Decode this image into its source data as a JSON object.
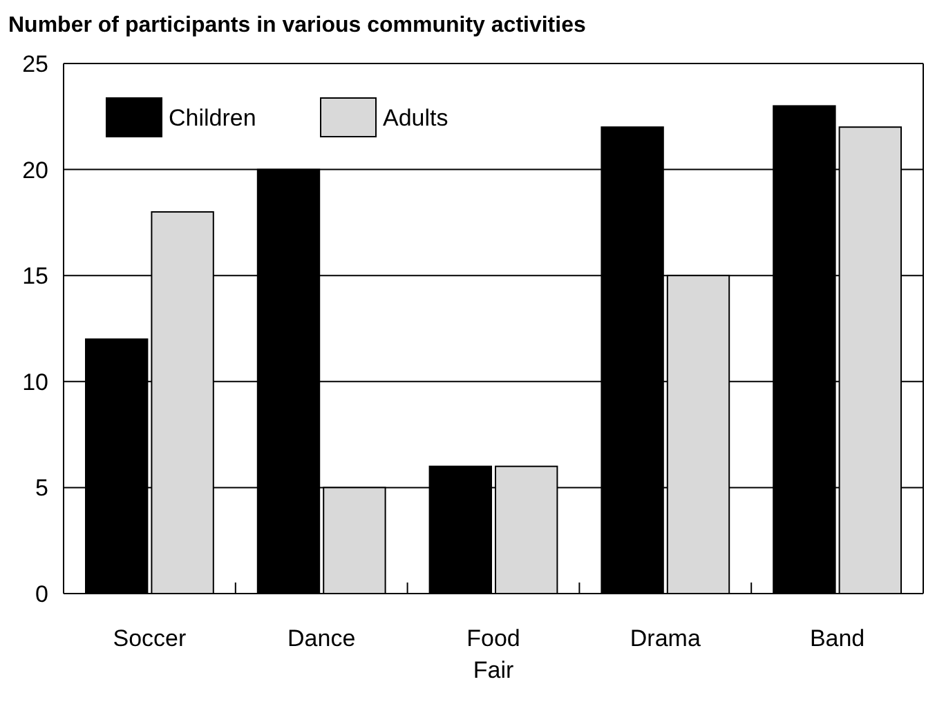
{
  "chart_data": {
    "type": "bar",
    "title": "Number of participants in various community activities",
    "categories": [
      "Soccer",
      "Dance",
      "Food Fair",
      "Drama",
      "Band"
    ],
    "series": [
      {
        "name": "Children",
        "color": "#000000",
        "values": [
          12,
          20,
          6,
          22,
          23
        ]
      },
      {
        "name": "Adults",
        "color": "#d9d9d9",
        "values": [
          18,
          5,
          6,
          15,
          22
        ]
      }
    ],
    "ylim": [
      0,
      25
    ],
    "yticks": [
      0,
      5,
      10,
      15,
      20,
      25
    ],
    "grid": "y",
    "legend": "top left"
  }
}
